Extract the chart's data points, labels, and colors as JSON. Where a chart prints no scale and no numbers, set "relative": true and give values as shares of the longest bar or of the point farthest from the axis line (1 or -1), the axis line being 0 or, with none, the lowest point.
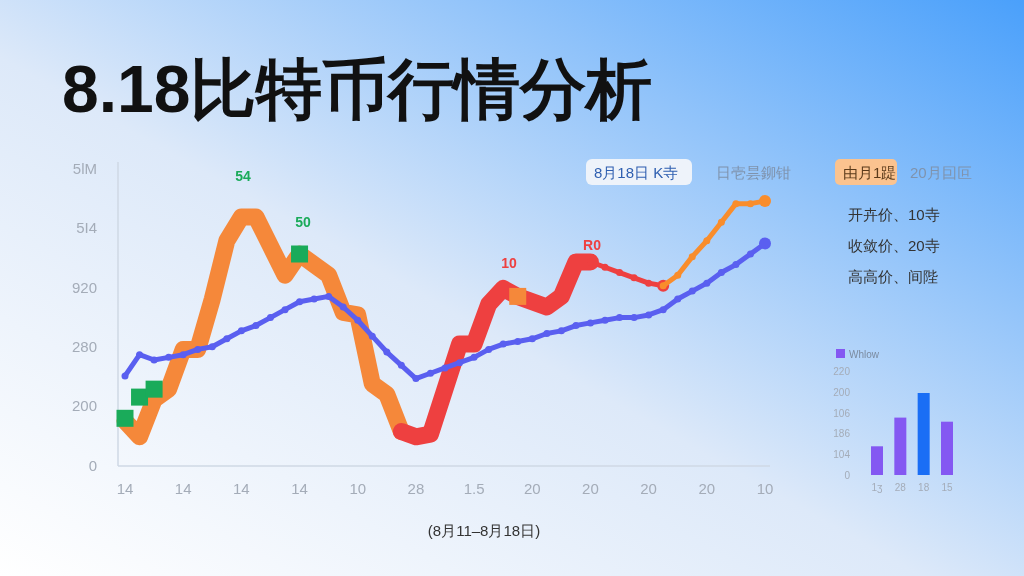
{
  "chart_data": [
    {
      "type": "line",
      "title": "8.18比特币行情分析",
      "xlabel": "(8月11–8月18日)",
      "relative": true,
      "annotations": [
        "8月18日 K寺",
        "日壱昙鉚钳",
        "0",
        "200",
        "280",
        "920",
        "5I4",
        "5lM",
        "54",
        "50",
        "10",
        "R0"
      ],
      "categories": [
        "14",
        null,
        null,
        null,
        "14",
        null,
        null,
        null,
        "14",
        null,
        null,
        null,
        "14",
        null,
        null,
        null,
        "10",
        null,
        null,
        null,
        "28",
        null,
        null,
        null,
        "1.5",
        null,
        null,
        null,
        "20",
        null,
        null,
        null,
        "20",
        null,
        null,
        null,
        "20",
        null,
        null,
        null,
        "20",
        null,
        null,
        null,
        "10"
      ],
      "series": [
        {
          "type": "line",
          "color": "#f5883a",
          "values": [
            0.17,
            0.11,
            0.25,
            0.29,
            0.44,
            0.44,
            0.63,
            0.85,
            0.94,
            0.94,
            0.83,
            0.72,
            0.8,
            0.76,
            0.72,
            0.58,
            0.57,
            0.31,
            0.27,
            0.13,
            null,
            null,
            null,
            null,
            null,
            null,
            null,
            null,
            null,
            null,
            null,
            null,
            null,
            null,
            null,
            null,
            null,
            null,
            null,
            null,
            null,
            null,
            null,
            null,
            null
          ]
        },
        {
          "type": "line",
          "color": "#ee4040",
          "values": [
            null,
            null,
            null,
            null,
            null,
            null,
            null,
            null,
            null,
            null,
            null,
            null,
            null,
            null,
            null,
            null,
            null,
            null,
            null,
            0.13,
            0.11,
            0.12,
            0.29,
            0.46,
            0.46,
            0.61,
            0.67,
            0.64,
            0.62,
            0.6,
            0.64,
            0.77,
            0.77,
            null,
            null,
            null,
            null,
            null,
            null,
            null,
            null,
            null,
            null,
            null,
            null
          ]
        },
        {
          "type": "scatter",
          "color": "#1aab5a",
          "marker": "square",
          "values": [
            0.18,
            0.26,
            0.29,
            null,
            null,
            null,
            null,
            null,
            null,
            null,
            null,
            null,
            0.8,
            null,
            null,
            null,
            null,
            null,
            null,
            null,
            null,
            null,
            null,
            null,
            null,
            null,
            null,
            null,
            null,
            null,
            null,
            null,
            null,
            null,
            null,
            null,
            null,
            null,
            null,
            null,
            null,
            null,
            null,
            null,
            null
          ]
        },
        {
          "type": "scatter",
          "color": "#f5883a",
          "marker": "square",
          "values": [
            null,
            null,
            null,
            null,
            null,
            null,
            null,
            null,
            null,
            null,
            null,
            null,
            null,
            null,
            null,
            null,
            null,
            null,
            null,
            null,
            null,
            null,
            null,
            null,
            null,
            null,
            null,
            0.64,
            null,
            null,
            null,
            null,
            null,
            null,
            null,
            null,
            null,
            null,
            null,
            null,
            null,
            null,
            null,
            null,
            null
          ]
        },
        {
          "type": "line",
          "color": "#ee4040",
          "marker": "circle",
          "values": [
            null,
            null,
            null,
            null,
            null,
            null,
            null,
            null,
            null,
            null,
            null,
            null,
            null,
            null,
            null,
            null,
            null,
            null,
            null,
            null,
            null,
            null,
            null,
            null,
            null,
            null,
            null,
            null,
            null,
            null,
            null,
            null,
            0.77,
            0.75,
            0.73,
            0.71,
            0.69,
            0.68,
            null,
            null,
            null,
            null,
            null,
            null,
            null
          ]
        },
        {
          "type": "line",
          "color": "#f98d2c",
          "marker": "circle",
          "values": [
            null,
            null,
            null,
            null,
            null,
            null,
            null,
            null,
            null,
            null,
            null,
            null,
            null,
            null,
            null,
            null,
            null,
            null,
            null,
            null,
            null,
            null,
            null,
            null,
            null,
            null,
            null,
            null,
            null,
            null,
            null,
            null,
            null,
            null,
            null,
            null,
            null,
            0.68,
            0.72,
            0.79,
            0.85,
            0.92,
            0.99,
            0.99,
            1
          ]
        },
        {
          "type": "line",
          "color": "#5a5ff0",
          "marker": "circle",
          "values": [
            0.34,
            0.42,
            0.4,
            0.41,
            0.42,
            0.44,
            0.45,
            0.48,
            0.51,
            0.53,
            0.56,
            0.59,
            0.62,
            0.63,
            0.64,
            0.6,
            0.55,
            0.49,
            0.43,
            0.38,
            0.33,
            0.35,
            0.37,
            0.39,
            0.41,
            0.44,
            0.46,
            0.47,
            0.48,
            0.5,
            0.51,
            0.53,
            0.54,
            0.55,
            0.56,
            0.56,
            0.57,
            0.59,
            0.63,
            0.66,
            0.69,
            0.73,
            0.76,
            0.8,
            0.84
          ]
        }
      ]
    },
    {
      "type": "bar",
      "relative": true,
      "categories": [
        "1ʒ",
        "28",
        "18",
        "15"
      ],
      "annotations": [
        "0",
        "104",
        "186",
        "106",
        "200",
        "220"
      ],
      "legend": "top left",
      "series": [
        {
          "name": "Whlow",
          "color": "#8458f2",
          "values": [
            0.35,
            0.7,
            1,
            0.65
          ],
          "colors": [
            "#8458f2",
            "#8458f2",
            "#1a6ef5",
            "#8458f2"
          ]
        }
      ]
    },
    {
      "type": "other",
      "annotations": [
        "由月1踶",
        "20月囙叵",
        "开卉价、10寺",
        "收敛价、20寺",
        "高高价、间陛"
      ]
    }
  ]
}
